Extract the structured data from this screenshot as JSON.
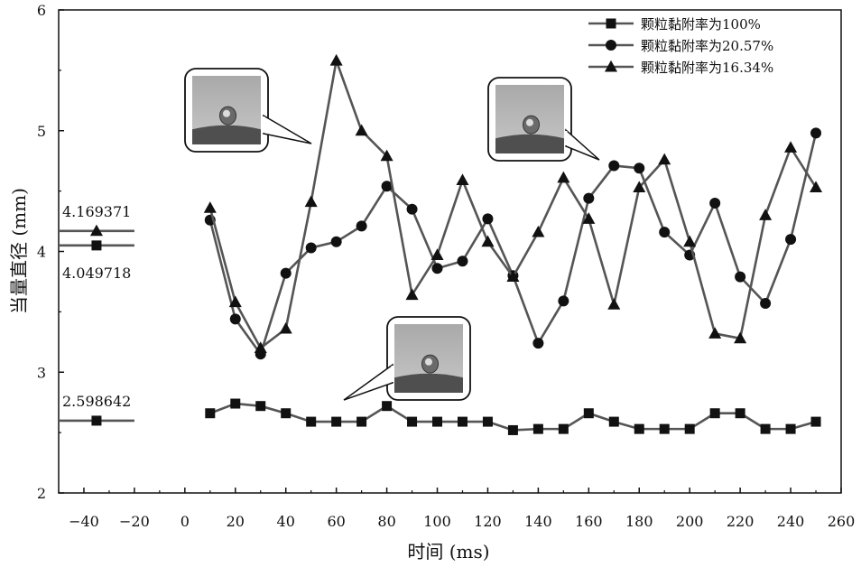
{
  "chart_data": {
    "type": "line",
    "title": "",
    "xlabel": "时间 (ms)",
    "ylabel": "当量直径 (mm)",
    "xlim": [
      -50,
      260
    ],
    "ylim": [
      2,
      6
    ],
    "xticks": [
      "−40",
      "−20",
      "0",
      "20",
      "40",
      "60",
      "80",
      "100",
      "120",
      "140",
      "160",
      "180",
      "200",
      "220",
      "240",
      "260"
    ],
    "yticks": [
      "2",
      "3",
      "4",
      "5",
      "6"
    ],
    "grid": false,
    "legend_position": "top-right",
    "x": [
      10,
      20,
      30,
      40,
      50,
      60,
      70,
      80,
      90,
      100,
      110,
      120,
      130,
      140,
      150,
      160,
      170,
      180,
      190,
      200,
      210,
      220,
      230,
      240,
      250
    ],
    "series": [
      {
        "name": "颗粒黏附率为100%",
        "marker": "square",
        "values": [
          2.66,
          2.74,
          2.72,
          2.66,
          2.59,
          2.59,
          2.59,
          2.72,
          2.59,
          2.59,
          2.59,
          2.59,
          2.52,
          2.53,
          2.53,
          2.66,
          2.59,
          2.53,
          2.53,
          2.53,
          2.66,
          2.66,
          2.53,
          2.53,
          2.59
        ]
      },
      {
        "name": "颗粒黏附率为20.57%",
        "marker": "circle",
        "values": [
          4.26,
          3.44,
          3.15,
          3.82,
          4.03,
          4.08,
          4.21,
          4.54,
          4.35,
          3.86,
          3.92,
          4.27,
          3.8,
          3.24,
          3.59,
          4.44,
          4.71,
          4.69,
          4.16,
          3.97,
          4.4,
          3.79,
          3.57,
          4.1,
          4.98
        ]
      },
      {
        "name": "颗粒黏附率为16.34%",
        "marker": "triangle",
        "values": [
          4.36,
          3.58,
          3.2,
          3.36,
          4.41,
          5.58,
          5.0,
          4.79,
          3.64,
          3.97,
          4.59,
          4.08,
          3.79,
          4.16,
          4.61,
          4.27,
          3.56,
          4.53,
          4.76,
          4.08,
          3.32,
          3.28,
          4.3,
          4.86,
          4.53
        ]
      }
    ],
    "reference_lines": [
      {
        "label": "4.169371",
        "value": 4.169371,
        "marker": "triangle",
        "x_range": [
          -50,
          -20
        ]
      },
      {
        "label": "4.049718",
        "value": 4.049718,
        "marker": "square",
        "x_range": [
          -50,
          -20
        ]
      },
      {
        "label": "2.598642",
        "value": 2.598642,
        "marker": "square",
        "x_range": [
          -50,
          -20
        ]
      }
    ],
    "annotations": [
      {
        "type": "inset-photo",
        "depicts": "droplet",
        "points_to": [
          50,
          5.0
        ]
      },
      {
        "type": "inset-photo",
        "depicts": "droplet",
        "points_to": [
          165,
          4.75
        ]
      },
      {
        "type": "inset-photo",
        "depicts": "droplet",
        "points_to": [
          70,
          2.75
        ]
      }
    ]
  }
}
